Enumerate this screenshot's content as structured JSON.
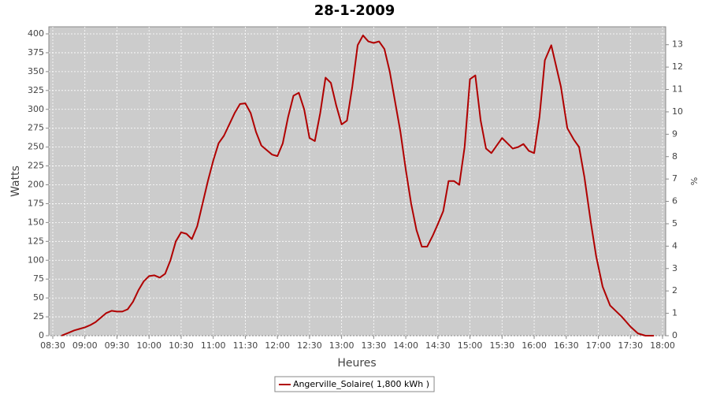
{
  "chart_data": {
    "type": "line",
    "title": "28-1-2009",
    "x_label": "Heures",
    "y_label": "Watts",
    "y2_label": "%",
    "x": [
      "08:38",
      "08:45",
      "08:50",
      "08:55",
      "09:00",
      "09:05",
      "09:10",
      "09:15",
      "09:20",
      "09:25",
      "09:30",
      "09:35",
      "09:40",
      "09:45",
      "09:50",
      "09:55",
      "10:00",
      "10:05",
      "10:10",
      "10:15",
      "10:20",
      "10:25",
      "10:30",
      "10:35",
      "10:40",
      "10:45",
      "10:50",
      "10:55",
      "11:00",
      "11:05",
      "11:10",
      "11:15",
      "11:20",
      "11:25",
      "11:30",
      "11:35",
      "11:40",
      "11:45",
      "11:50",
      "11:55",
      "12:00",
      "12:05",
      "12:10",
      "12:15",
      "12:20",
      "12:25",
      "12:30",
      "12:35",
      "12:40",
      "12:45",
      "12:50",
      "12:55",
      "13:00",
      "13:05",
      "13:10",
      "13:15",
      "13:20",
      "13:25",
      "13:30",
      "13:35",
      "13:40",
      "13:45",
      "13:50",
      "13:55",
      "14:00",
      "14:05",
      "14:10",
      "14:15",
      "14:20",
      "14:25",
      "14:30",
      "14:35",
      "14:40",
      "14:45",
      "14:50",
      "14:55",
      "15:00",
      "15:05",
      "15:10",
      "15:15",
      "15:20",
      "15:25",
      "15:30",
      "15:35",
      "15:40",
      "15:45",
      "15:50",
      "15:55",
      "16:00",
      "16:05",
      "16:10",
      "16:16",
      "16:25",
      "16:31",
      "16:37",
      "16:42",
      "16:47",
      "16:53",
      "16:58",
      "17:04",
      "17:11",
      "17:22",
      "17:30",
      "17:37",
      "17:44",
      "17:52"
    ],
    "series": [
      {
        "name": "Angerville_Solaire( 1,800 kWh )",
        "color": "#b00000",
        "values": [
          0,
          4,
          7,
          9,
          11,
          14,
          18,
          24,
          30,
          33,
          32,
          32,
          35,
          45,
          60,
          72,
          79,
          80,
          77,
          82,
          100,
          125,
          137,
          135,
          128,
          145,
          175,
          205,
          232,
          255,
          265,
          280,
          295,
          307,
          308,
          295,
          270,
          252,
          246,
          240,
          238,
          255,
          290,
          318,
          322,
          300,
          262,
          258,
          295,
          342,
          335,
          305,
          280,
          285,
          330,
          385,
          398,
          390,
          388,
          390,
          380,
          350,
          310,
          270,
          220,
          175,
          140,
          118,
          118,
          132,
          148,
          165,
          205,
          205,
          200,
          250,
          340,
          345,
          285,
          248,
          242,
          252,
          262,
          255,
          248,
          250,
          254,
          245,
          242,
          290,
          365,
          385,
          330,
          275,
          260,
          250,
          210,
          150,
          105,
          65,
          40,
          25,
          12,
          3,
          0,
          0
        ]
      }
    ],
    "xlim": [
      "08:30",
      "18:00"
    ],
    "xticks": [
      "08:30",
      "09:00",
      "09:30",
      "10:00",
      "10:30",
      "11:00",
      "11:30",
      "12:00",
      "12:30",
      "13:00",
      "13:30",
      "14:00",
      "14:30",
      "15:00",
      "15:30",
      "16:00",
      "16:30",
      "17:00",
      "17:30",
      "18:00"
    ],
    "ylim": [
      0,
      409.4
    ],
    "yticks": [
      0,
      25,
      50,
      75,
      100,
      125,
      150,
      175,
      200,
      225,
      250,
      275,
      300,
      325,
      350,
      375,
      400
    ],
    "y2lim": [
      0,
      13.8
    ],
    "y2ticks": [
      0,
      1,
      2,
      3,
      4,
      5,
      6,
      7,
      8,
      9,
      10,
      11,
      12,
      13
    ],
    "grid": true,
    "legend": "bottom"
  }
}
